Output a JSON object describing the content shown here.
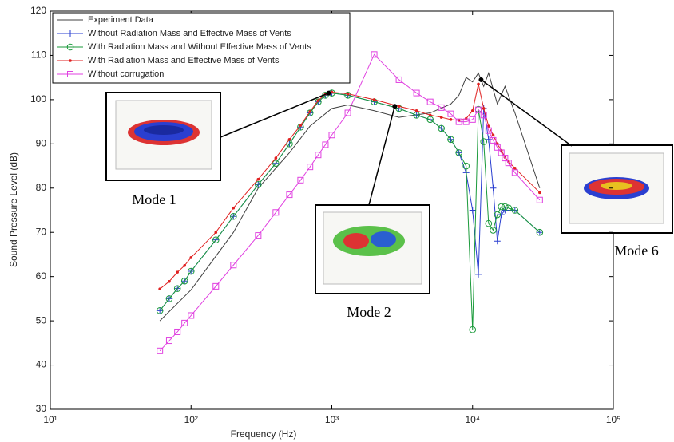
{
  "chart_data": {
    "type": "line",
    "xlabel": "Frequency (Hz)",
    "ylabel": "Sound Pressure Level (dB)",
    "xscale": "log",
    "grid": false,
    "legend": "upper left",
    "xlim": [
      10,
      100000
    ],
    "ylim": [
      30,
      120
    ],
    "xticks": [
      {
        "value": 10,
        "label": "10¹"
      },
      {
        "value": 100,
        "label": "10²"
      },
      {
        "value": 1000,
        "label": "10³"
      },
      {
        "value": 10000,
        "label": "10⁴"
      },
      {
        "value": 100000,
        "label": "10⁵"
      }
    ],
    "yticks": [
      30,
      40,
      50,
      60,
      70,
      80,
      90,
      100,
      110,
      120
    ],
    "series": [
      {
        "name": "Experiment Data",
        "color": "#404040",
        "marker": "none",
        "x": [
          60,
          100,
          200,
          300,
          500,
          700,
          1000,
          1300,
          2000,
          3000,
          5000,
          7000,
          8000,
          9000,
          10000,
          11000,
          12000,
          13000,
          15000,
          17000,
          20000,
          30000
        ],
        "values": [
          50,
          57,
          70,
          80,
          88,
          94,
          98,
          98.8,
          97.5,
          96,
          97,
          99,
          101,
          105,
          104,
          106,
          103,
          106,
          99,
          103,
          97,
          80
        ]
      },
      {
        "name": "Without Radiation Mass and Effective Mass of Vents",
        "color": "#2a3fd0",
        "marker": "plus",
        "x": [
          60,
          70,
          80,
          90,
          100,
          150,
          200,
          300,
          400,
          500,
          600,
          700,
          800,
          900,
          1000,
          1300,
          2000,
          3000,
          4000,
          5000,
          6000,
          7000,
          8000,
          9000,
          10000,
          11000,
          12000,
          13000,
          14000,
          15000,
          16000,
          17000,
          20000,
          30000
        ],
        "values": [
          52.3,
          55,
          57.3,
          59,
          61.2,
          68.3,
          73.6,
          80.8,
          85.6,
          90,
          93.8,
          97,
          99.5,
          101,
          101.5,
          101,
          99.5,
          98,
          96.5,
          95.5,
          93.5,
          91,
          88,
          83.5,
          75,
          60.5,
          98,
          91,
          80,
          68,
          74,
          75,
          75,
          70
        ]
      },
      {
        "name": "With Radiation Mass and Without Effective Mass of Vents",
        "color": "#1a9a3a",
        "marker": "circle",
        "x": [
          60,
          70,
          80,
          90,
          100,
          150,
          200,
          300,
          400,
          500,
          600,
          700,
          800,
          900,
          1000,
          1300,
          2000,
          3000,
          4000,
          5000,
          6000,
          7000,
          8000,
          9000,
          10000,
          11000,
          12000,
          13000,
          14000,
          15000,
          16000,
          17000,
          18000,
          20000,
          30000
        ],
        "values": [
          52.3,
          55,
          57.3,
          59,
          61.2,
          68.3,
          73.6,
          80.8,
          85.6,
          90,
          93.8,
          97,
          99.5,
          101,
          101.5,
          101,
          99.5,
          98,
          96.5,
          95.5,
          93.5,
          91,
          88,
          85,
          48,
          97.8,
          90.5,
          72,
          70.5,
          74,
          75.8,
          75.8,
          75.5,
          75,
          70
        ]
      },
      {
        "name": "With Radiation Mass and Effective Mass of Vents",
        "color": "#e02020",
        "marker": "dot",
        "x": [
          60,
          70,
          80,
          90,
          100,
          150,
          200,
          300,
          400,
          500,
          600,
          700,
          800,
          900,
          1000,
          1300,
          2000,
          3000,
          4000,
          5000,
          6000,
          7000,
          8000,
          9000,
          10000,
          11000,
          12000,
          13000,
          14000,
          15000,
          16000,
          17000,
          18000,
          20000,
          30000
        ],
        "values": [
          57.2,
          58.9,
          61,
          62.5,
          64.3,
          70,
          75.5,
          82,
          86.8,
          91,
          94.2,
          97.3,
          99.8,
          101.3,
          101.7,
          101.3,
          100,
          98.5,
          97.5,
          96.5,
          96,
          95.5,
          95.3,
          95.7,
          97.5,
          103.5,
          98,
          94,
          92,
          90,
          88.5,
          87,
          86,
          84.5,
          79
        ]
      },
      {
        "name": "Without corrugation",
        "color": "#e040e0",
        "marker": "square",
        "x": [
          60,
          70,
          80,
          90,
          100,
          150,
          200,
          300,
          400,
          500,
          600,
          700,
          800,
          900,
          1000,
          1300,
          2000,
          3000,
          4000,
          5000,
          6000,
          7000,
          8000,
          9000,
          10000,
          11000,
          12000,
          13000,
          14000,
          15000,
          16000,
          17000,
          18000,
          20000,
          30000
        ],
        "values": [
          43.2,
          45.5,
          47.5,
          49.5,
          51.2,
          57.8,
          62.6,
          69.3,
          74.5,
          78.5,
          81.8,
          84.8,
          87.5,
          89.8,
          92,
          97,
          110.2,
          104.5,
          101.5,
          99.5,
          98.2,
          96.8,
          95,
          95,
          95.5,
          97.7,
          96.5,
          93,
          90.8,
          89.2,
          88,
          86.8,
          85.7,
          83.5,
          77.3
        ]
      }
    ],
    "annotations": [
      {
        "text": "Mode 1",
        "x": 950,
        "y": 101.5
      },
      {
        "text": "Mode 2",
        "x": 2800,
        "y": 98.5
      },
      {
        "text": "Mode 6",
        "x": 11500,
        "y": 104.5
      }
    ]
  }
}
